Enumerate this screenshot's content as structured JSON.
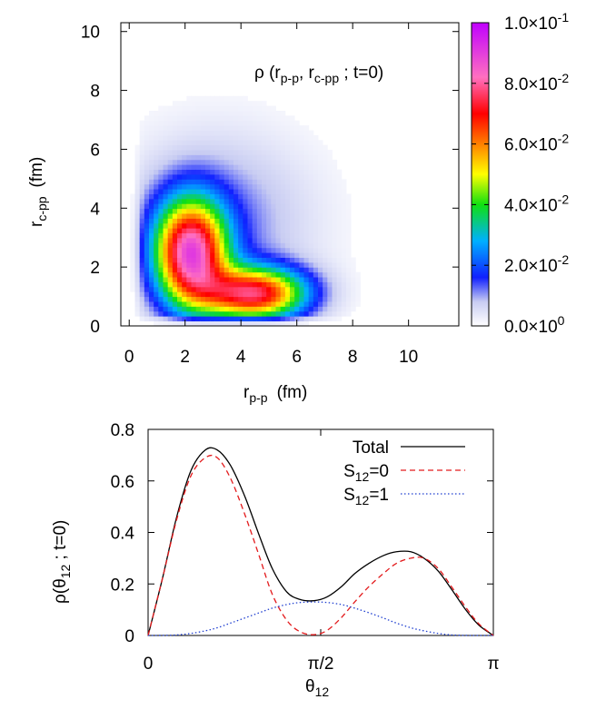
{
  "chart_data": [
    {
      "type": "heatmap",
      "title": "ρ (r",
      "title_sub1": "p-p",
      "title_mid": ", r",
      "title_sub2": "c-pp",
      "title_end": " ; t=0)",
      "xlabel": "r",
      "xlabel_sub": "p-p",
      "xlabel_unit": "(fm)",
      "ylabel": "r",
      "ylabel_sub": "c-pp",
      "ylabel_unit": "(fm)",
      "xlim": [
        -0.3,
        11.8
      ],
      "ylim": [
        0,
        10.3
      ],
      "xticks": [
        "0",
        "2",
        "4",
        "6",
        "8",
        "10"
      ],
      "yticks": [
        "0",
        "2",
        "4",
        "6",
        "8",
        "10"
      ],
      "peaks": [
        {
          "x": 2.2,
          "y": 2.5,
          "value": 0.08
        },
        {
          "x": 4.5,
          "y": 1.1,
          "value": 0.071
        }
      ],
      "colorbar": {
        "range": [
          0,
          0.1
        ],
        "tick_values": [
          0,
          0.02,
          0.04,
          0.06,
          0.08,
          0.1
        ],
        "ticks": [
          {
            "mant": "0.0×10",
            "exp": "0"
          },
          {
            "mant": "2.0×10",
            "exp": "-2"
          },
          {
            "mant": "4.0×10",
            "exp": "-2"
          },
          {
            "mant": "6.0×10",
            "exp": "-2"
          },
          {
            "mant": "8.0×10",
            "exp": "-2"
          },
          {
            "mant": "1.0×10",
            "exp": "-1"
          }
        ]
      }
    },
    {
      "type": "line",
      "ylabel": "ρ(θ",
      "ylabel_sub": "12",
      "ylabel_end": " ; t=0)",
      "xlabel": "θ",
      "xlabel_sub": "12",
      "xlim": [
        0,
        3.14159
      ],
      "ylim": [
        0,
        0.8
      ],
      "xticks": [
        {
          "value": 0,
          "label": "0"
        },
        {
          "value": 1.5708,
          "label": "π/2"
        },
        {
          "value": 3.14159,
          "label": "π"
        }
      ],
      "yticks": [
        {
          "value": 0,
          "label": "0"
        },
        {
          "value": 0.2,
          "label": "0.2"
        },
        {
          "value": 0.4,
          "label": "0.4"
        },
        {
          "value": 0.6,
          "label": "0.6"
        },
        {
          "value": 0.8,
          "label": "0.8"
        }
      ],
      "series": [
        {
          "name": "Total",
          "label_main": "Total",
          "label_sub": "",
          "label_end": "",
          "color": "#000000",
          "dash": "",
          "x": [
            0,
            0.13,
            0.26,
            0.39,
            0.52,
            0.63,
            0.75,
            0.88,
            1.01,
            1.13,
            1.26,
            1.38,
            1.51,
            1.63,
            1.76,
            1.88,
            2.01,
            2.14,
            2.26,
            2.39,
            2.51,
            2.64,
            2.76,
            2.89,
            3.01,
            3.14159
          ],
          "y": [
            0,
            0.22,
            0.46,
            0.64,
            0.72,
            0.72,
            0.66,
            0.54,
            0.39,
            0.26,
            0.17,
            0.14,
            0.135,
            0.15,
            0.19,
            0.24,
            0.28,
            0.31,
            0.325,
            0.325,
            0.3,
            0.25,
            0.18,
            0.1,
            0.04,
            0
          ]
        },
        {
          "name": "S12=0",
          "label_main": "S",
          "label_sub": "12",
          "label_end": "=0",
          "color": "#e31a1c",
          "dash": "6,4",
          "x": [
            0,
            0.13,
            0.26,
            0.39,
            0.52,
            0.63,
            0.75,
            0.88,
            1.01,
            1.13,
            1.26,
            1.38,
            1.51,
            1.63,
            1.76,
            1.88,
            2.01,
            2.14,
            2.26,
            2.39,
            2.51,
            2.64,
            2.76,
            2.89,
            3.01,
            3.14159
          ],
          "y": [
            0,
            0.22,
            0.45,
            0.62,
            0.69,
            0.69,
            0.61,
            0.47,
            0.31,
            0.16,
            0.06,
            0.015,
            0.003,
            0.02,
            0.07,
            0.13,
            0.19,
            0.24,
            0.28,
            0.3,
            0.3,
            0.26,
            0.19,
            0.11,
            0.045,
            0
          ]
        },
        {
          "name": "S12=1",
          "label_main": "S",
          "label_sub": "12",
          "label_end": "=1",
          "color": "#1f3fd0",
          "dash": "1.5,2.5",
          "x": [
            0,
            0.13,
            0.26,
            0.39,
            0.52,
            0.63,
            0.75,
            0.88,
            1.01,
            1.13,
            1.26,
            1.38,
            1.51,
            1.63,
            1.76,
            1.88,
            2.01,
            2.14,
            2.26,
            2.39,
            2.51,
            2.64,
            2.76,
            2.89,
            3.01,
            3.14159
          ],
          "y": [
            0,
            0.0003,
            0.002,
            0.008,
            0.018,
            0.03,
            0.048,
            0.068,
            0.088,
            0.106,
            0.12,
            0.128,
            0.13,
            0.128,
            0.12,
            0.106,
            0.088,
            0.068,
            0.048,
            0.03,
            0.018,
            0.008,
            0.002,
            0.0003,
            0,
            0
          ]
        }
      ]
    }
  ]
}
